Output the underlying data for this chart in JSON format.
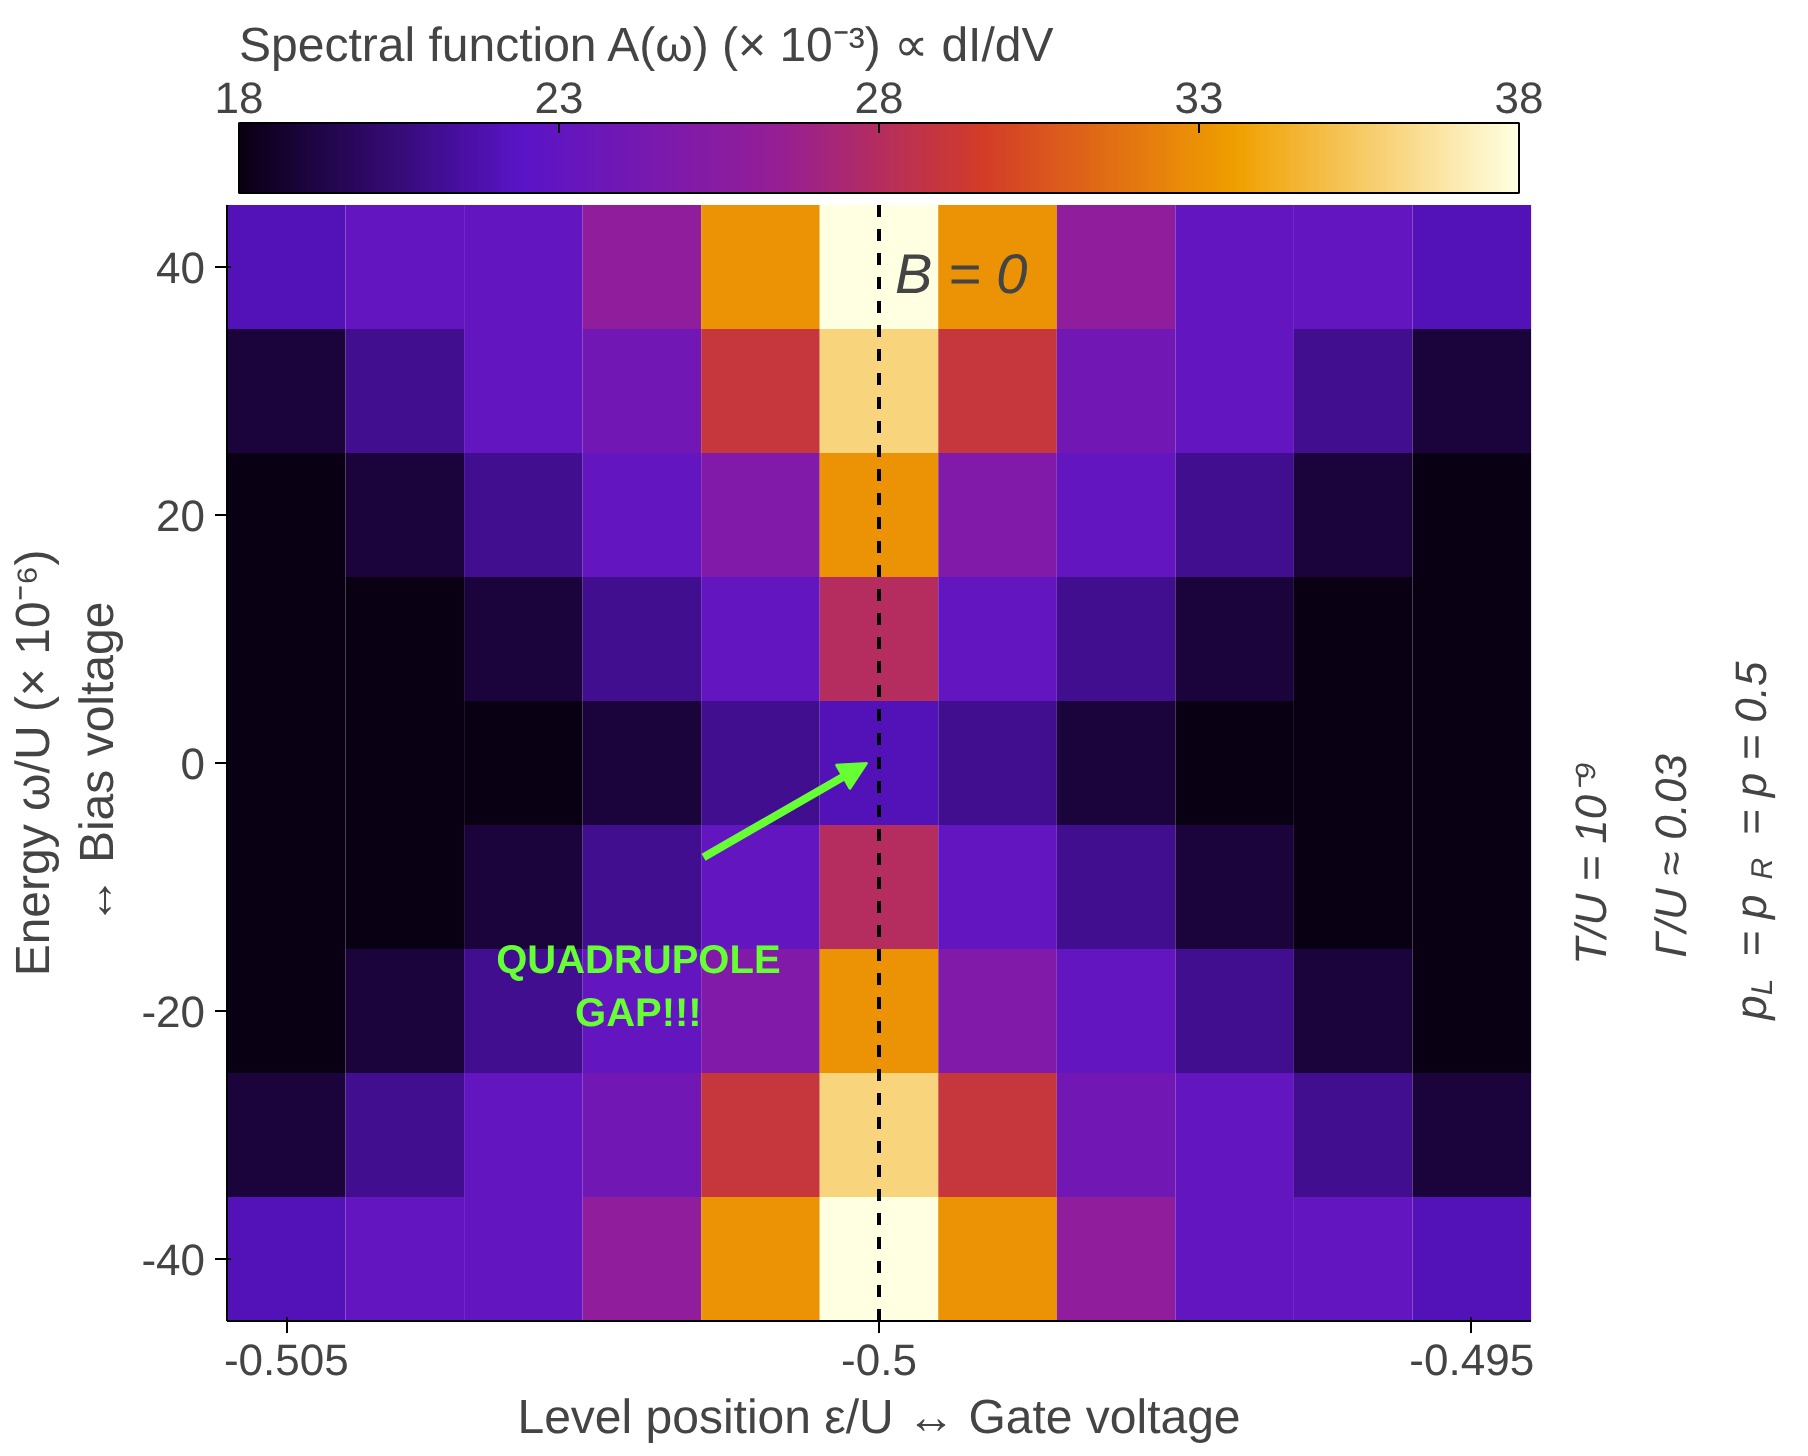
{
  "chart_data": {
    "type": "heatmap",
    "clabel": "Spectral function A(ω) (× 10⁻³) ∝ dI/dV",
    "xlabel": "Level position ε/U ↔ Gate voltage",
    "ylabel": "Energy ω/U (× 10⁻⁶)\n↔ Bias voltage",
    "categories": [
      "-0.505",
      null,
      null,
      null,
      null,
      "-0.5",
      null,
      null,
      null,
      null,
      "-0.495"
    ],
    "y_categories": [
      "40",
      null,
      "20",
      null,
      "0",
      null,
      "-20",
      null,
      "-40"
    ],
    "clim": [
      18,
      38
    ],
    "cticks": [
      18,
      23,
      28,
      33,
      38
    ],
    "cells": [
      [
        22,
        23,
        23,
        26,
        33,
        38,
        33,
        26,
        23,
        23,
        22
      ],
      [
        19,
        21,
        23,
        24,
        29,
        36,
        29,
        24,
        23,
        21,
        19
      ],
      [
        18,
        19,
        21,
        23,
        25,
        33,
        25,
        23,
        21,
        19,
        18
      ],
      [
        18,
        18,
        19,
        21,
        23,
        28,
        23,
        21,
        19,
        18,
        18
      ],
      [
        18,
        18,
        18,
        19,
        21,
        22,
        21,
        19,
        18,
        18,
        18
      ],
      [
        18,
        18,
        19,
        21,
        23,
        28,
        23,
        21,
        19,
        18,
        18
      ],
      [
        18,
        19,
        21,
        23,
        25,
        33,
        25,
        23,
        21,
        19,
        18
      ],
      [
        19,
        21,
        23,
        24,
        29,
        36,
        29,
        24,
        23,
        21,
        19
      ],
      [
        22,
        23,
        23,
        26,
        33,
        38,
        33,
        26,
        23,
        23,
        22
      ]
    ],
    "ref_lines": [
      {
        "axis": "x",
        "value": "-0.5",
        "label": "B = 0",
        "color": "#000000",
        "line_style": "dashed"
      }
    ],
    "annotations": [
      "QUADRUPOLE\nGAP!!!",
      "T/U = 10⁻⁹",
      "Γ/U ≈ 0.03",
      "p$_{L}$ = p$_{R}$ = p = 0.5"
    ]
  }
}
